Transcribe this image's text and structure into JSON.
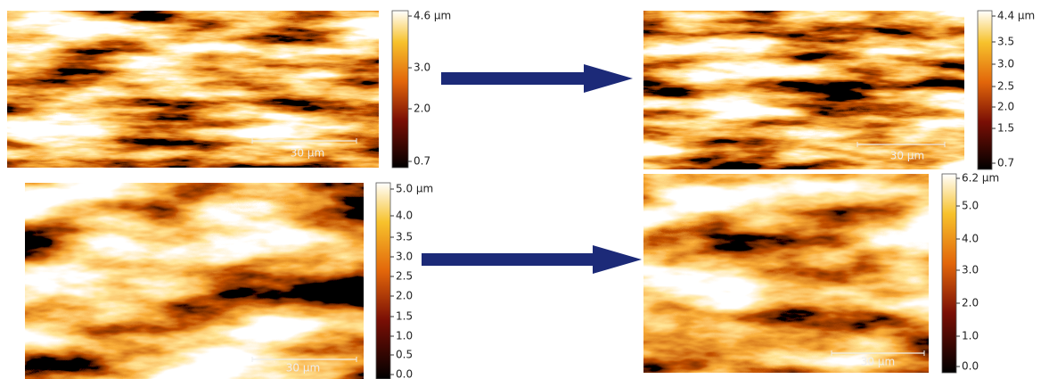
{
  "panels": [
    {
      "colorbar": [
        "4.6 µm",
        "3.0",
        "2.0",
        "0.7"
      ],
      "scale_bar": "30 µm"
    },
    {
      "colorbar": [
        "4.4 µm",
        "3.5",
        "3.0",
        "2.5",
        "2.0",
        "1.5",
        "0.7"
      ],
      "scale_bar": "30 µm"
    },
    {
      "colorbar": [
        "5.0 µm",
        "4.0",
        "3.5",
        "3.0",
        "2.5",
        "2.0",
        "1.5",
        "1.0",
        "0.5",
        "0.0"
      ],
      "scale_bar": "30 µm"
    },
    {
      "colorbar": [
        "6.2 µm",
        "5.0",
        "4.0",
        "3.0",
        "2.0",
        "1.0",
        "0.0"
      ],
      "scale_bar": "30 µm"
    }
  ]
}
